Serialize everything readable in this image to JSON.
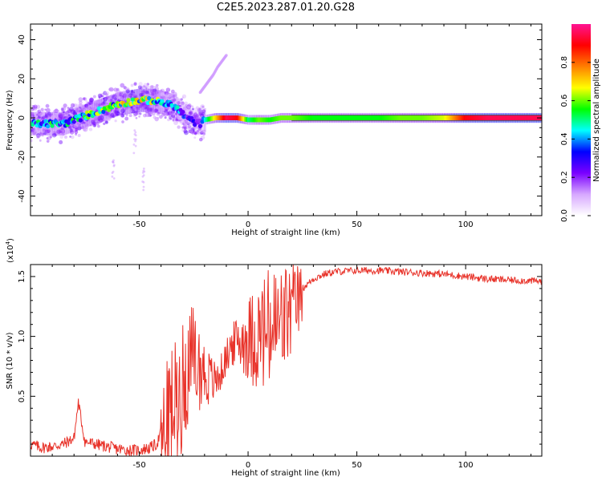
{
  "figure_title": "C2E5.2023.287.01.20.G28",
  "chart_data": [
    {
      "type": "scatter",
      "title": "",
      "xlabel": "Height of straight line (km)",
      "ylabel": "Frequency (Hz)",
      "xlim": [
        -100,
        135
      ],
      "ylim": [
        -50,
        48
      ],
      "xticks": [
        -50,
        0,
        50,
        100
      ],
      "yticks": [
        -40,
        -20,
        0,
        20,
        40
      ],
      "grid": false,
      "main_track": {
        "x": [
          -100,
          -95,
          -90,
          -85,
          -80,
          -75,
          -70,
          -65,
          -60,
          -55,
          -50,
          -45,
          -40,
          -37,
          -34,
          -31,
          -28,
          -25,
          -22,
          -20,
          -15,
          -10,
          -5,
          0,
          5,
          10,
          15,
          20,
          30,
          40,
          50,
          60,
          70,
          80,
          90,
          100,
          110,
          120,
          135
        ],
        "y": [
          -3,
          -3,
          -3,
          -3,
          -1,
          1,
          3,
          5,
          7,
          8,
          9,
          9,
          8,
          7,
          6,
          3,
          0,
          -2,
          -3,
          -1,
          0,
          0,
          0,
          -1,
          -1,
          -1,
          0,
          0,
          0,
          0,
          0,
          0,
          0,
          0,
          0,
          0,
          0,
          0,
          0
        ],
        "amplitude": [
          0.45,
          0.5,
          0.55,
          0.5,
          0.55,
          0.6,
          0.65,
          0.6,
          0.65,
          0.7,
          0.7,
          0.65,
          0.6,
          0.55,
          0.5,
          0.4,
          0.35,
          0.3,
          0.25,
          0.45,
          0.7,
          0.95,
          0.9,
          0.5,
          0.6,
          0.55,
          0.6,
          0.6,
          0.55,
          0.55,
          0.55,
          0.55,
          0.6,
          0.6,
          0.65,
          0.9,
          0.95,
          0.95,
          0.95
        ]
      },
      "secondary_track": {
        "x": [
          -22,
          -20,
          -18,
          -16,
          -14,
          -12,
          -10
        ],
        "y": [
          13,
          16,
          19,
          22,
          26,
          29,
          32
        ]
      },
      "colorbar": {
        "label": "Normalized spectral amplitude",
        "range": [
          0,
          1
        ],
        "ticks": [
          0.0,
          0.2,
          0.4,
          0.6,
          0.8
        ],
        "tick_labels": [
          "0.0",
          "0.2",
          "0.4",
          "0.6",
          "0.8"
        ],
        "colormap": [
          "#ffffff",
          "#d7a8ff",
          "#7a00ff",
          "#0000ff",
          "#00ffff",
          "#00ff00",
          "#ffff00",
          "#ff7f00",
          "#ff0000",
          "#ff1493"
        ]
      }
    },
    {
      "type": "line",
      "title": "",
      "xlabel": "Height of straight line (km)",
      "ylabel": "SNR (10 * v/v)",
      "y_multiplier": "(x10",
      "y_multiplier_exp": "4",
      "y_multiplier_close": ")",
      "xlim": [
        -100,
        135
      ],
      "ylim": [
        0,
        1.6
      ],
      "xticks": [
        -50,
        0,
        50,
        100
      ],
      "yticks": [
        0.5,
        1.0,
        1.5
      ],
      "ytick_labels": [
        "0.5",
        "1.0",
        "1.5"
      ],
      "grid": false,
      "series": [
        {
          "color": "#e8332a",
          "x": [
            -100,
            -95,
            -90,
            -85,
            -80,
            -78,
            -75,
            -70,
            -65,
            -60,
            -55,
            -50,
            -45,
            -42,
            -40,
            -38,
            -35,
            -32,
            -30,
            -28,
            -25,
            -22,
            -20,
            -18,
            -15,
            -12,
            -10,
            -8,
            -5,
            0,
            5,
            10,
            15,
            20,
            25,
            30,
            35,
            40,
            50,
            60,
            70,
            80,
            90,
            100,
            110,
            120,
            135
          ],
          "y": [
            0.1,
            0.07,
            0.08,
            0.1,
            0.15,
            0.45,
            0.12,
            0.1,
            0.08,
            0.06,
            0.05,
            0.05,
            0.07,
            0.1,
            0.2,
            0.35,
            0.5,
            0.6,
            0.7,
            0.85,
            0.9,
            0.8,
            0.75,
            0.7,
            0.65,
            0.75,
            0.85,
            0.95,
            1.0,
            1.05,
            1.1,
            1.15,
            1.2,
            1.3,
            1.4,
            1.48,
            1.52,
            1.54,
            1.55,
            1.55,
            1.54,
            1.53,
            1.52,
            1.5,
            1.48,
            1.47,
            1.46
          ]
        }
      ]
    }
  ]
}
